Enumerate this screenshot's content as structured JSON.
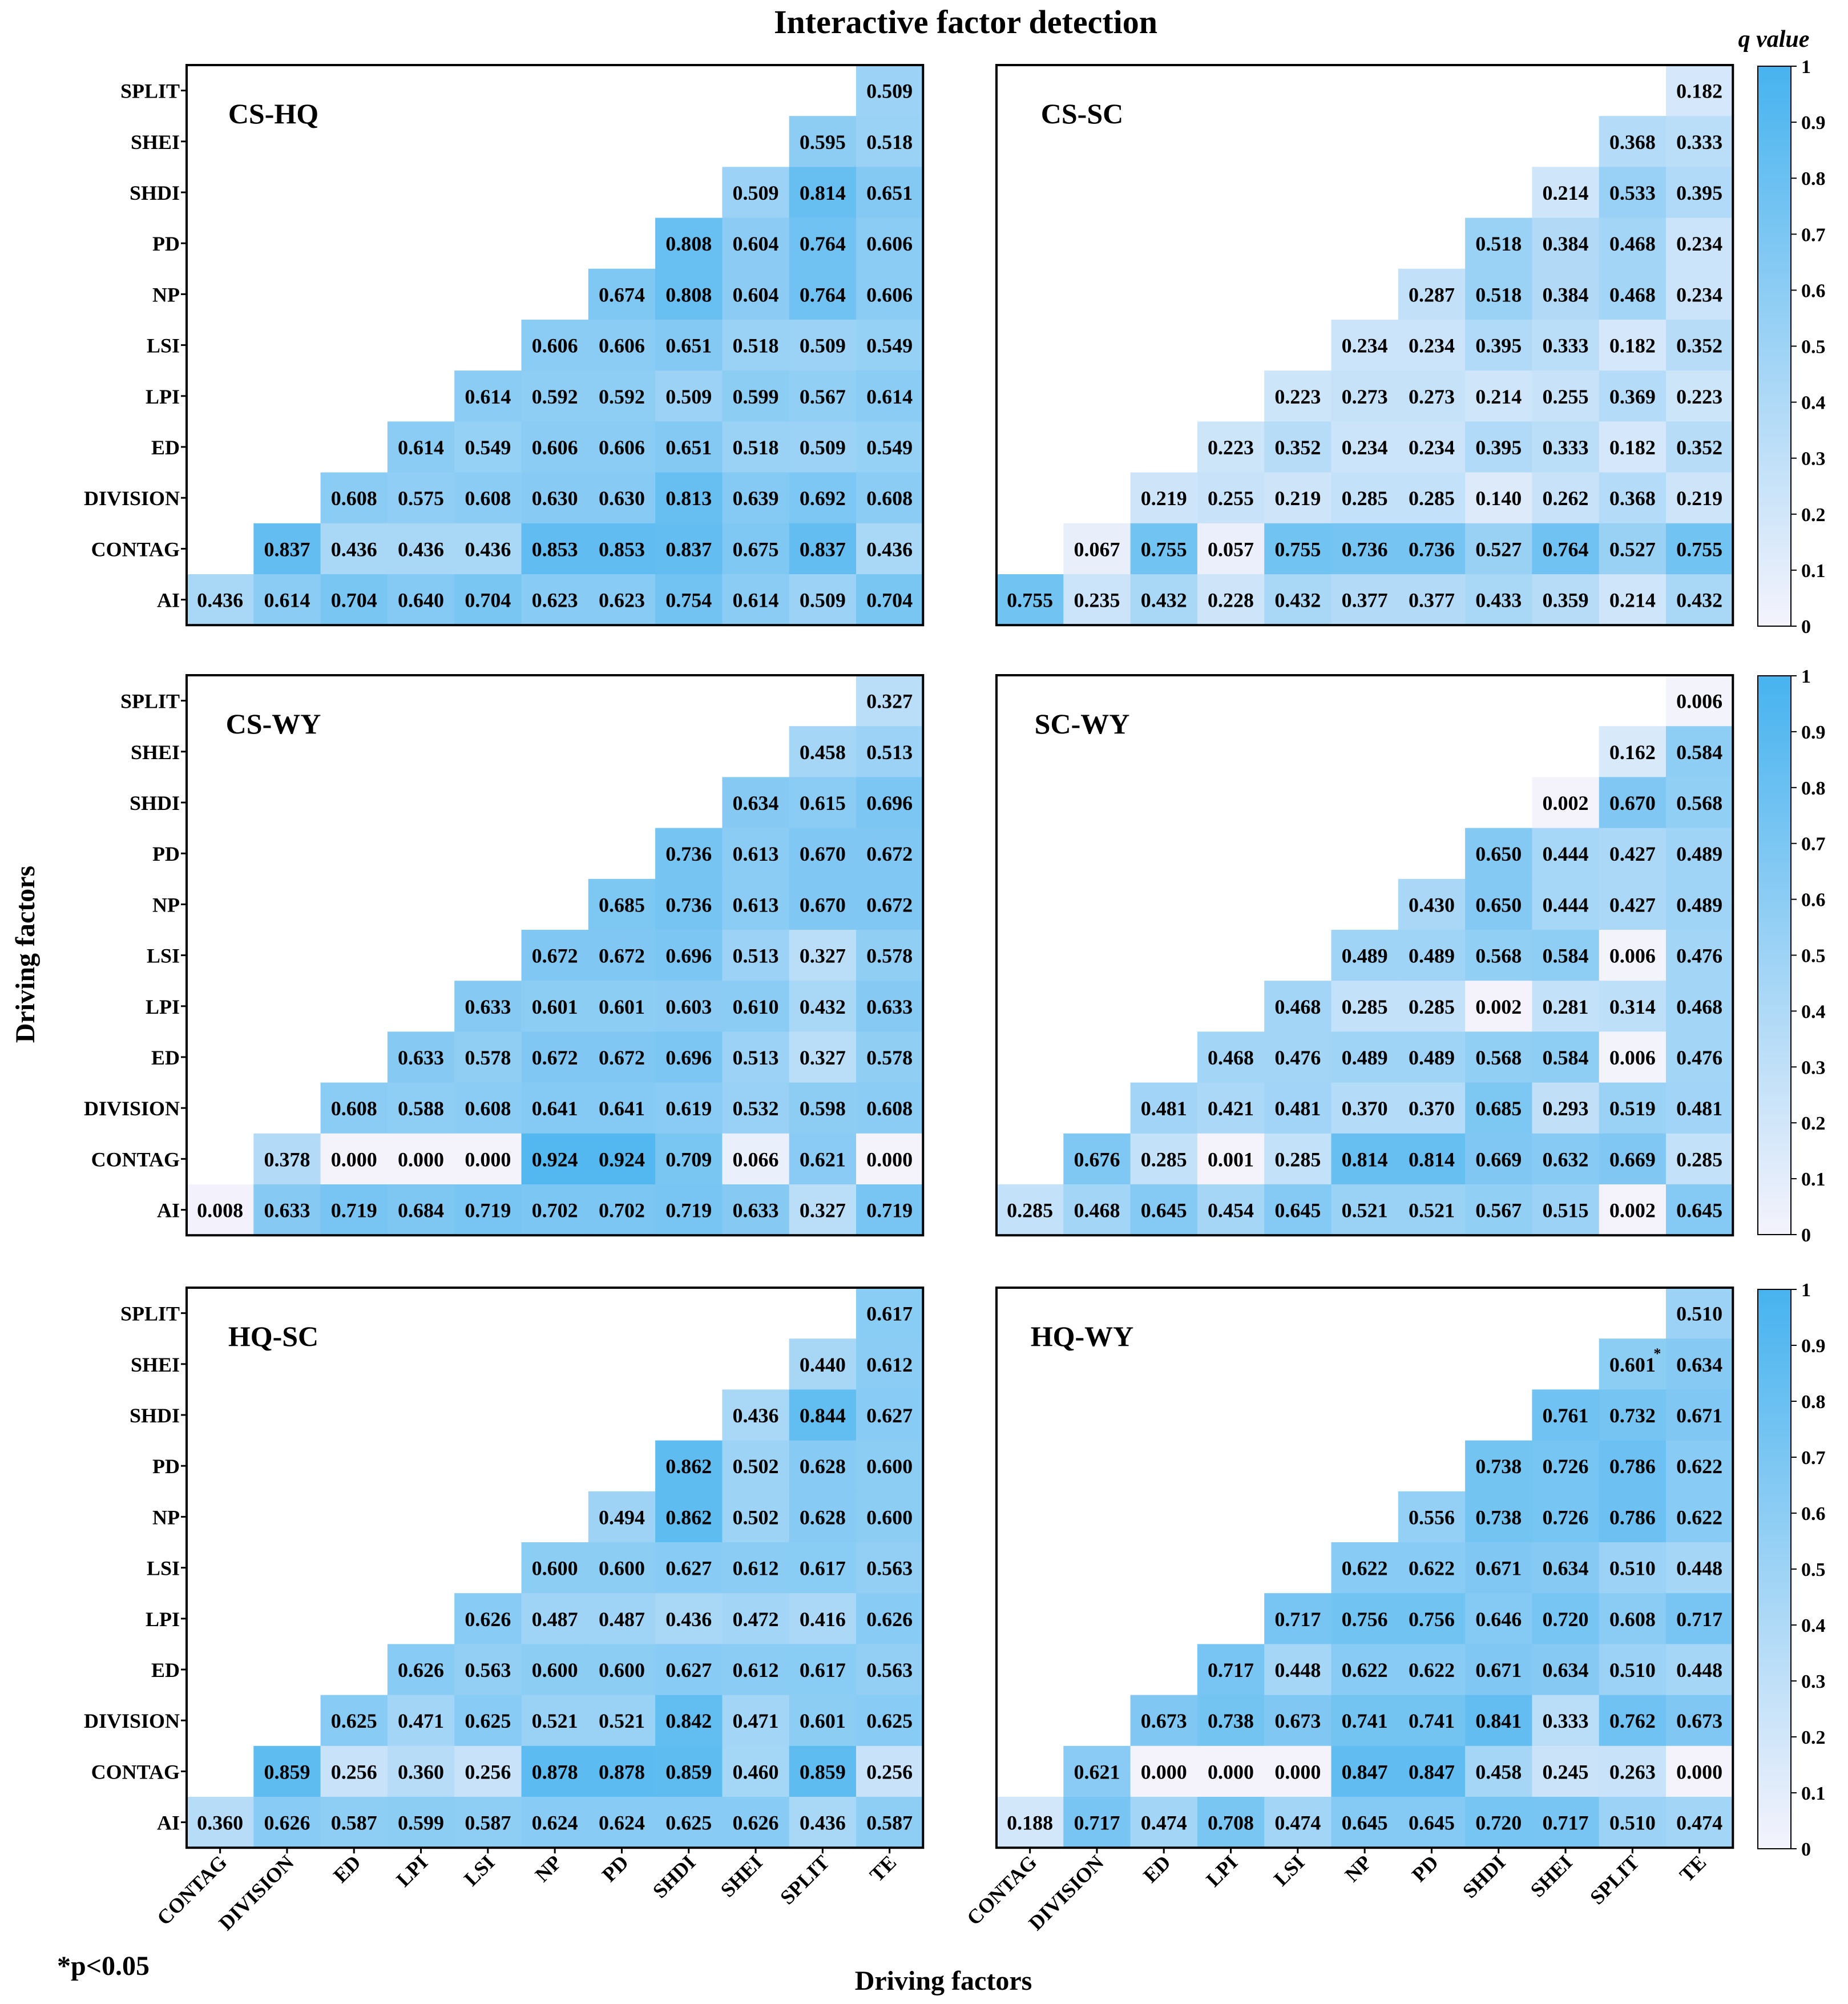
{
  "title": "Interactive factor detection",
  "xlabel": "Driving factors",
  "ylabel": "Driving factors",
  "footnote": "*p<0.05",
  "colorbar": {
    "label": "q value",
    "ticks": [
      "0",
      "0.1",
      "0.2",
      "0.3",
      "0.4",
      "0.5",
      "0.6",
      "0.7",
      "0.8",
      "0.9",
      "1"
    ],
    "low_color": "#f4f3fc",
    "high_color": "#47b3ef"
  },
  "chart_data": {
    "type": "heatmap",
    "columns": [
      "CONTAG",
      "DIVISION",
      "ED",
      "LPI",
      "LSI",
      "NP",
      "PD",
      "SHDI",
      "SHEI",
      "SPLIT",
      "TE"
    ],
    "rows": [
      "SPLIT",
      "SHEI",
      "SHDI",
      "PD",
      "NP",
      "LSI",
      "LPI",
      "ED",
      "DIVISION",
      "CONTAG",
      "AI"
    ],
    "vmin": 0,
    "vmax": 1,
    "panels": [
      {
        "name": "CS-HQ",
        "values": [
          [
            null,
            null,
            null,
            null,
            null,
            null,
            null,
            null,
            null,
            null,
            0.509
          ],
          [
            null,
            null,
            null,
            null,
            null,
            null,
            null,
            null,
            null,
            0.595,
            0.518
          ],
          [
            null,
            null,
            null,
            null,
            null,
            null,
            null,
            null,
            0.509,
            0.814,
            0.651
          ],
          [
            null,
            null,
            null,
            null,
            null,
            null,
            null,
            0.808,
            0.604,
            0.764,
            0.606
          ],
          [
            null,
            null,
            null,
            null,
            null,
            null,
            0.674,
            0.808,
            0.604,
            0.764,
            0.606
          ],
          [
            null,
            null,
            null,
            null,
            null,
            0.606,
            0.606,
            0.651,
            0.518,
            0.509,
            0.549
          ],
          [
            null,
            null,
            null,
            null,
            0.614,
            0.592,
            0.592,
            0.509,
            0.599,
            0.567,
            0.614
          ],
          [
            null,
            null,
            null,
            0.614,
            0.549,
            0.606,
            0.606,
            0.651,
            0.518,
            0.509,
            0.549
          ],
          [
            null,
            null,
            0.608,
            0.575,
            0.608,
            0.63,
            0.63,
            0.813,
            0.639,
            0.692,
            0.608
          ],
          [
            null,
            0.837,
            0.436,
            0.436,
            0.436,
            0.853,
            0.853,
            0.837,
            0.675,
            0.837,
            0.436
          ],
          [
            0.436,
            0.614,
            0.704,
            0.64,
            0.704,
            0.623,
            0.623,
            0.754,
            0.614,
            0.509,
            0.704
          ]
        ]
      },
      {
        "name": "CS-SC",
        "values": [
          [
            null,
            null,
            null,
            null,
            null,
            null,
            null,
            null,
            null,
            null,
            0.182
          ],
          [
            null,
            null,
            null,
            null,
            null,
            null,
            null,
            null,
            null,
            0.368,
            0.333
          ],
          [
            null,
            null,
            null,
            null,
            null,
            null,
            null,
            null,
            0.214,
            0.533,
            0.395
          ],
          [
            null,
            null,
            null,
            null,
            null,
            null,
            null,
            0.518,
            0.384,
            0.468,
            0.234
          ],
          [
            null,
            null,
            null,
            null,
            null,
            null,
            0.287,
            0.518,
            0.384,
            0.468,
            0.234
          ],
          [
            null,
            null,
            null,
            null,
            null,
            0.234,
            0.234,
            0.395,
            0.333,
            0.182,
            0.352
          ],
          [
            null,
            null,
            null,
            null,
            0.223,
            0.273,
            0.273,
            0.214,
            0.255,
            0.369,
            0.223
          ],
          [
            null,
            null,
            null,
            0.223,
            0.352,
            0.234,
            0.234,
            0.395,
            0.333,
            0.182,
            0.352
          ],
          [
            null,
            null,
            0.219,
            0.255,
            0.219,
            0.285,
            0.285,
            0.14,
            0.262,
            0.368,
            0.219
          ],
          [
            null,
            0.067,
            0.755,
            0.057,
            0.755,
            0.736,
            0.736,
            0.527,
            0.764,
            0.527,
            0.755
          ],
          [
            0.755,
            0.235,
            0.432,
            0.228,
            0.432,
            0.377,
            0.377,
            0.433,
            0.359,
            0.214,
            0.432
          ]
        ]
      },
      {
        "name": "CS-WY",
        "values": [
          [
            null,
            null,
            null,
            null,
            null,
            null,
            null,
            null,
            null,
            null,
            0.327
          ],
          [
            null,
            null,
            null,
            null,
            null,
            null,
            null,
            null,
            null,
            0.458,
            0.513
          ],
          [
            null,
            null,
            null,
            null,
            null,
            null,
            null,
            null,
            0.634,
            0.615,
            0.696
          ],
          [
            null,
            null,
            null,
            null,
            null,
            null,
            null,
            0.736,
            0.613,
            0.67,
            0.672
          ],
          [
            null,
            null,
            null,
            null,
            null,
            null,
            0.685,
            0.736,
            0.613,
            0.67,
            0.672
          ],
          [
            null,
            null,
            null,
            null,
            null,
            0.672,
            0.672,
            0.696,
            0.513,
            0.327,
            0.578
          ],
          [
            null,
            null,
            null,
            null,
            0.633,
            0.601,
            0.601,
            0.603,
            0.61,
            0.432,
            0.633
          ],
          [
            null,
            null,
            null,
            0.633,
            0.578,
            0.672,
            0.672,
            0.696,
            0.513,
            0.327,
            0.578
          ],
          [
            null,
            null,
            0.608,
            0.588,
            0.608,
            0.641,
            0.641,
            0.619,
            0.532,
            0.598,
            0.608
          ],
          [
            null,
            0.378,
            0.0,
            0.0,
            0.0,
            0.924,
            0.924,
            0.709,
            0.066,
            0.621,
            0.0
          ],
          [
            0.008,
            0.633,
            0.719,
            0.684,
            0.719,
            0.702,
            0.702,
            0.719,
            0.633,
            0.327,
            0.719
          ]
        ]
      },
      {
        "name": "SC-WY",
        "values": [
          [
            null,
            null,
            null,
            null,
            null,
            null,
            null,
            null,
            null,
            null,
            0.006
          ],
          [
            null,
            null,
            null,
            null,
            null,
            null,
            null,
            null,
            null,
            0.162,
            0.584
          ],
          [
            null,
            null,
            null,
            null,
            null,
            null,
            null,
            null,
            0.002,
            0.67,
            0.568
          ],
          [
            null,
            null,
            null,
            null,
            null,
            null,
            null,
            0.65,
            0.444,
            0.427,
            0.489
          ],
          [
            null,
            null,
            null,
            null,
            null,
            null,
            0.43,
            0.65,
            0.444,
            0.427,
            0.489
          ],
          [
            null,
            null,
            null,
            null,
            null,
            0.489,
            0.489,
            0.568,
            0.584,
            0.006,
            0.476
          ],
          [
            null,
            null,
            null,
            null,
            0.468,
            0.285,
            0.285,
            0.002,
            0.281,
            0.314,
            0.468
          ],
          [
            null,
            null,
            null,
            0.468,
            0.476,
            0.489,
            0.489,
            0.568,
            0.584,
            0.006,
            0.476
          ],
          [
            null,
            null,
            0.481,
            0.421,
            0.481,
            0.37,
            0.37,
            0.685,
            0.293,
            0.519,
            0.481
          ],
          [
            null,
            0.676,
            0.285,
            0.001,
            0.285,
            0.814,
            0.814,
            0.669,
            0.632,
            0.669,
            0.285
          ],
          [
            0.285,
            0.468,
            0.645,
            0.454,
            0.645,
            0.521,
            0.521,
            0.567,
            0.515,
            0.002,
            0.645
          ]
        ]
      },
      {
        "name": "HQ-SC",
        "values": [
          [
            null,
            null,
            null,
            null,
            null,
            null,
            null,
            null,
            null,
            null,
            0.617
          ],
          [
            null,
            null,
            null,
            null,
            null,
            null,
            null,
            null,
            null,
            0.44,
            0.612
          ],
          [
            null,
            null,
            null,
            null,
            null,
            null,
            null,
            null,
            0.436,
            0.844,
            0.627
          ],
          [
            null,
            null,
            null,
            null,
            null,
            null,
            null,
            0.862,
            0.502,
            0.628,
            0.6
          ],
          [
            null,
            null,
            null,
            null,
            null,
            null,
            0.494,
            0.862,
            0.502,
            0.628,
            0.6
          ],
          [
            null,
            null,
            null,
            null,
            null,
            0.6,
            0.6,
            0.627,
            0.612,
            0.617,
            0.563
          ],
          [
            null,
            null,
            null,
            null,
            0.626,
            0.487,
            0.487,
            0.436,
            0.472,
            0.416,
            0.626
          ],
          [
            null,
            null,
            null,
            0.626,
            0.563,
            0.6,
            0.6,
            0.627,
            0.612,
            0.617,
            0.563
          ],
          [
            null,
            null,
            0.625,
            0.471,
            0.625,
            0.521,
            0.521,
            0.842,
            0.471,
            0.601,
            0.625
          ],
          [
            null,
            0.859,
            0.256,
            0.36,
            0.256,
            0.878,
            0.878,
            0.859,
            0.46,
            0.859,
            0.256
          ],
          [
            0.36,
            0.626,
            0.587,
            0.599,
            0.587,
            0.624,
            0.624,
            0.625,
            0.626,
            0.436,
            0.587
          ]
        ]
      },
      {
        "name": "HQ-WY",
        "values": [
          [
            null,
            null,
            null,
            null,
            null,
            null,
            null,
            null,
            null,
            null,
            0.51
          ],
          [
            null,
            null,
            null,
            null,
            null,
            null,
            null,
            null,
            null,
            0.601,
            0.634
          ],
          [
            null,
            null,
            null,
            null,
            null,
            null,
            null,
            null,
            0.761,
            0.732,
            0.671
          ],
          [
            null,
            null,
            null,
            null,
            null,
            null,
            null,
            0.738,
            0.726,
            0.786,
            0.622
          ],
          [
            null,
            null,
            null,
            null,
            null,
            null,
            0.556,
            0.738,
            0.726,
            0.786,
            0.622
          ],
          [
            null,
            null,
            null,
            null,
            null,
            0.622,
            0.622,
            0.671,
            0.634,
            0.51,
            0.448
          ],
          [
            null,
            null,
            null,
            null,
            0.717,
            0.756,
            0.756,
            0.646,
            0.72,
            0.608,
            0.717
          ],
          [
            null,
            null,
            null,
            0.717,
            0.448,
            0.622,
            0.622,
            0.671,
            0.634,
            0.51,
            0.448
          ],
          [
            null,
            null,
            0.673,
            0.738,
            0.673,
            0.741,
            0.741,
            0.841,
            0.333,
            0.762,
            0.673
          ],
          [
            null,
            0.621,
            0.0,
            0.0,
            0.0,
            0.847,
            0.847,
            0.458,
            0.245,
            0.263,
            0.0
          ],
          [
            0.188,
            0.717,
            0.474,
            0.708,
            0.474,
            0.645,
            0.645,
            0.72,
            0.717,
            0.51,
            0.474
          ]
        ],
        "annotations": [
          {
            "row": 1,
            "col": 9,
            "mark": "*"
          }
        ]
      }
    ]
  }
}
